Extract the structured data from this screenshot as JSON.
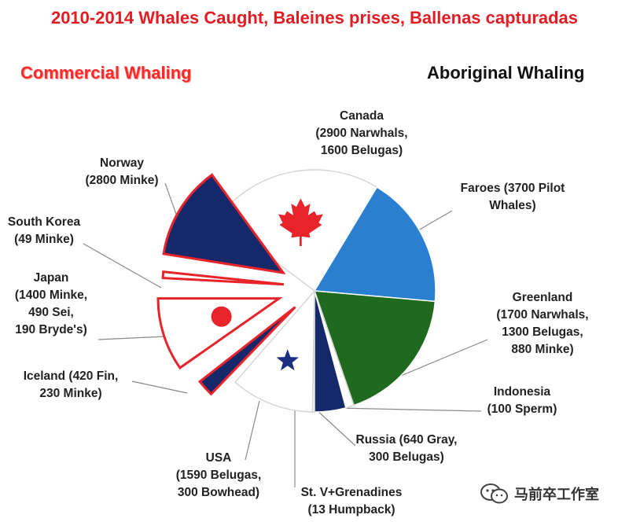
{
  "title": "2010-2014 Whales Caught, Baleines prises, Ballenas capturadas",
  "watermark": "马前卒工作室",
  "colors": {
    "title": "#e31b23",
    "commercial_outline": "#e8242a",
    "dark_blue": "#14286a",
    "light_blue": "#2a7fd0",
    "green": "#1f6a1f",
    "white": "#ffffff",
    "red_symbol": "#e8242a",
    "star": "#1a2f80"
  },
  "chart_data": {
    "type": "pie",
    "title": "2010-2014 Whales Caught, Baleines prises, Ballenas capturadas",
    "groups": [
      {
        "name": "Commercial Whaling",
        "exploded": true
      },
      {
        "name": "Aboriginal Whaling",
        "exploded": false
      }
    ],
    "slices": [
      {
        "country": "Canada",
        "lines": [
          "Canada",
          "(2900 Narwhals,",
          "1600 Belugas)"
        ],
        "total": 4500,
        "group": "Aboriginal Whaling",
        "fill": "white",
        "symbol": "maple-leaf"
      },
      {
        "country": "Faroes",
        "lines": [
          "Faroes (3700 Pilot",
          "Whales)"
        ],
        "total": 3700,
        "group": "Aboriginal Whaling",
        "fill": "light_blue"
      },
      {
        "country": "Greenland",
        "lines": [
          "Greenland",
          "(1700 Narwhals,",
          "1300 Belugas,",
          "880 Minke)"
        ],
        "total": 3880,
        "group": "Aboriginal Whaling",
        "fill": "green"
      },
      {
        "country": "Indonesia",
        "lines": [
          "Indonesia",
          "(100 Sperm)"
        ],
        "total": 100,
        "group": "Aboriginal Whaling",
        "fill": "white"
      },
      {
        "country": "Russia",
        "lines": [
          "Russia (640 Gray,",
          "300 Belugas)"
        ],
        "total": 940,
        "group": "Aboriginal Whaling",
        "fill": "dark_blue"
      },
      {
        "country": "St. V+Grenadines",
        "lines": [
          "St. V+Grenadines",
          "(13 Humpback)"
        ],
        "total": 13,
        "group": "Aboriginal Whaling",
        "fill": "white"
      },
      {
        "country": "USA",
        "lines": [
          "USA",
          "(1590 Belugas,",
          "300 Bowhead)"
        ],
        "total": 1890,
        "group": "Aboriginal Whaling",
        "fill": "white",
        "symbol": "star"
      },
      {
        "country": "Iceland",
        "lines": [
          "Iceland (420 Fin,",
          "230 Minke)"
        ],
        "total": 650,
        "group": "Commercial Whaling",
        "fill": "dark_blue"
      },
      {
        "country": "Japan",
        "lines": [
          "Japan",
          "(1400 Minke,",
          "490 Sei,",
          "190 Bryde's)"
        ],
        "total": 2080,
        "group": "Commercial Whaling",
        "fill": "white",
        "symbol": "red-disc"
      },
      {
        "country": "South Korea",
        "lines": [
          "South Korea",
          "(49 Minke)"
        ],
        "total": 49,
        "group": "Commercial Whaling",
        "fill": "white"
      },
      {
        "country": "Norway",
        "lines": [
          "Norway",
          "(2800 Minke)"
        ],
        "total": 2800,
        "group": "Commercial Whaling",
        "fill": "dark_blue"
      }
    ]
  }
}
